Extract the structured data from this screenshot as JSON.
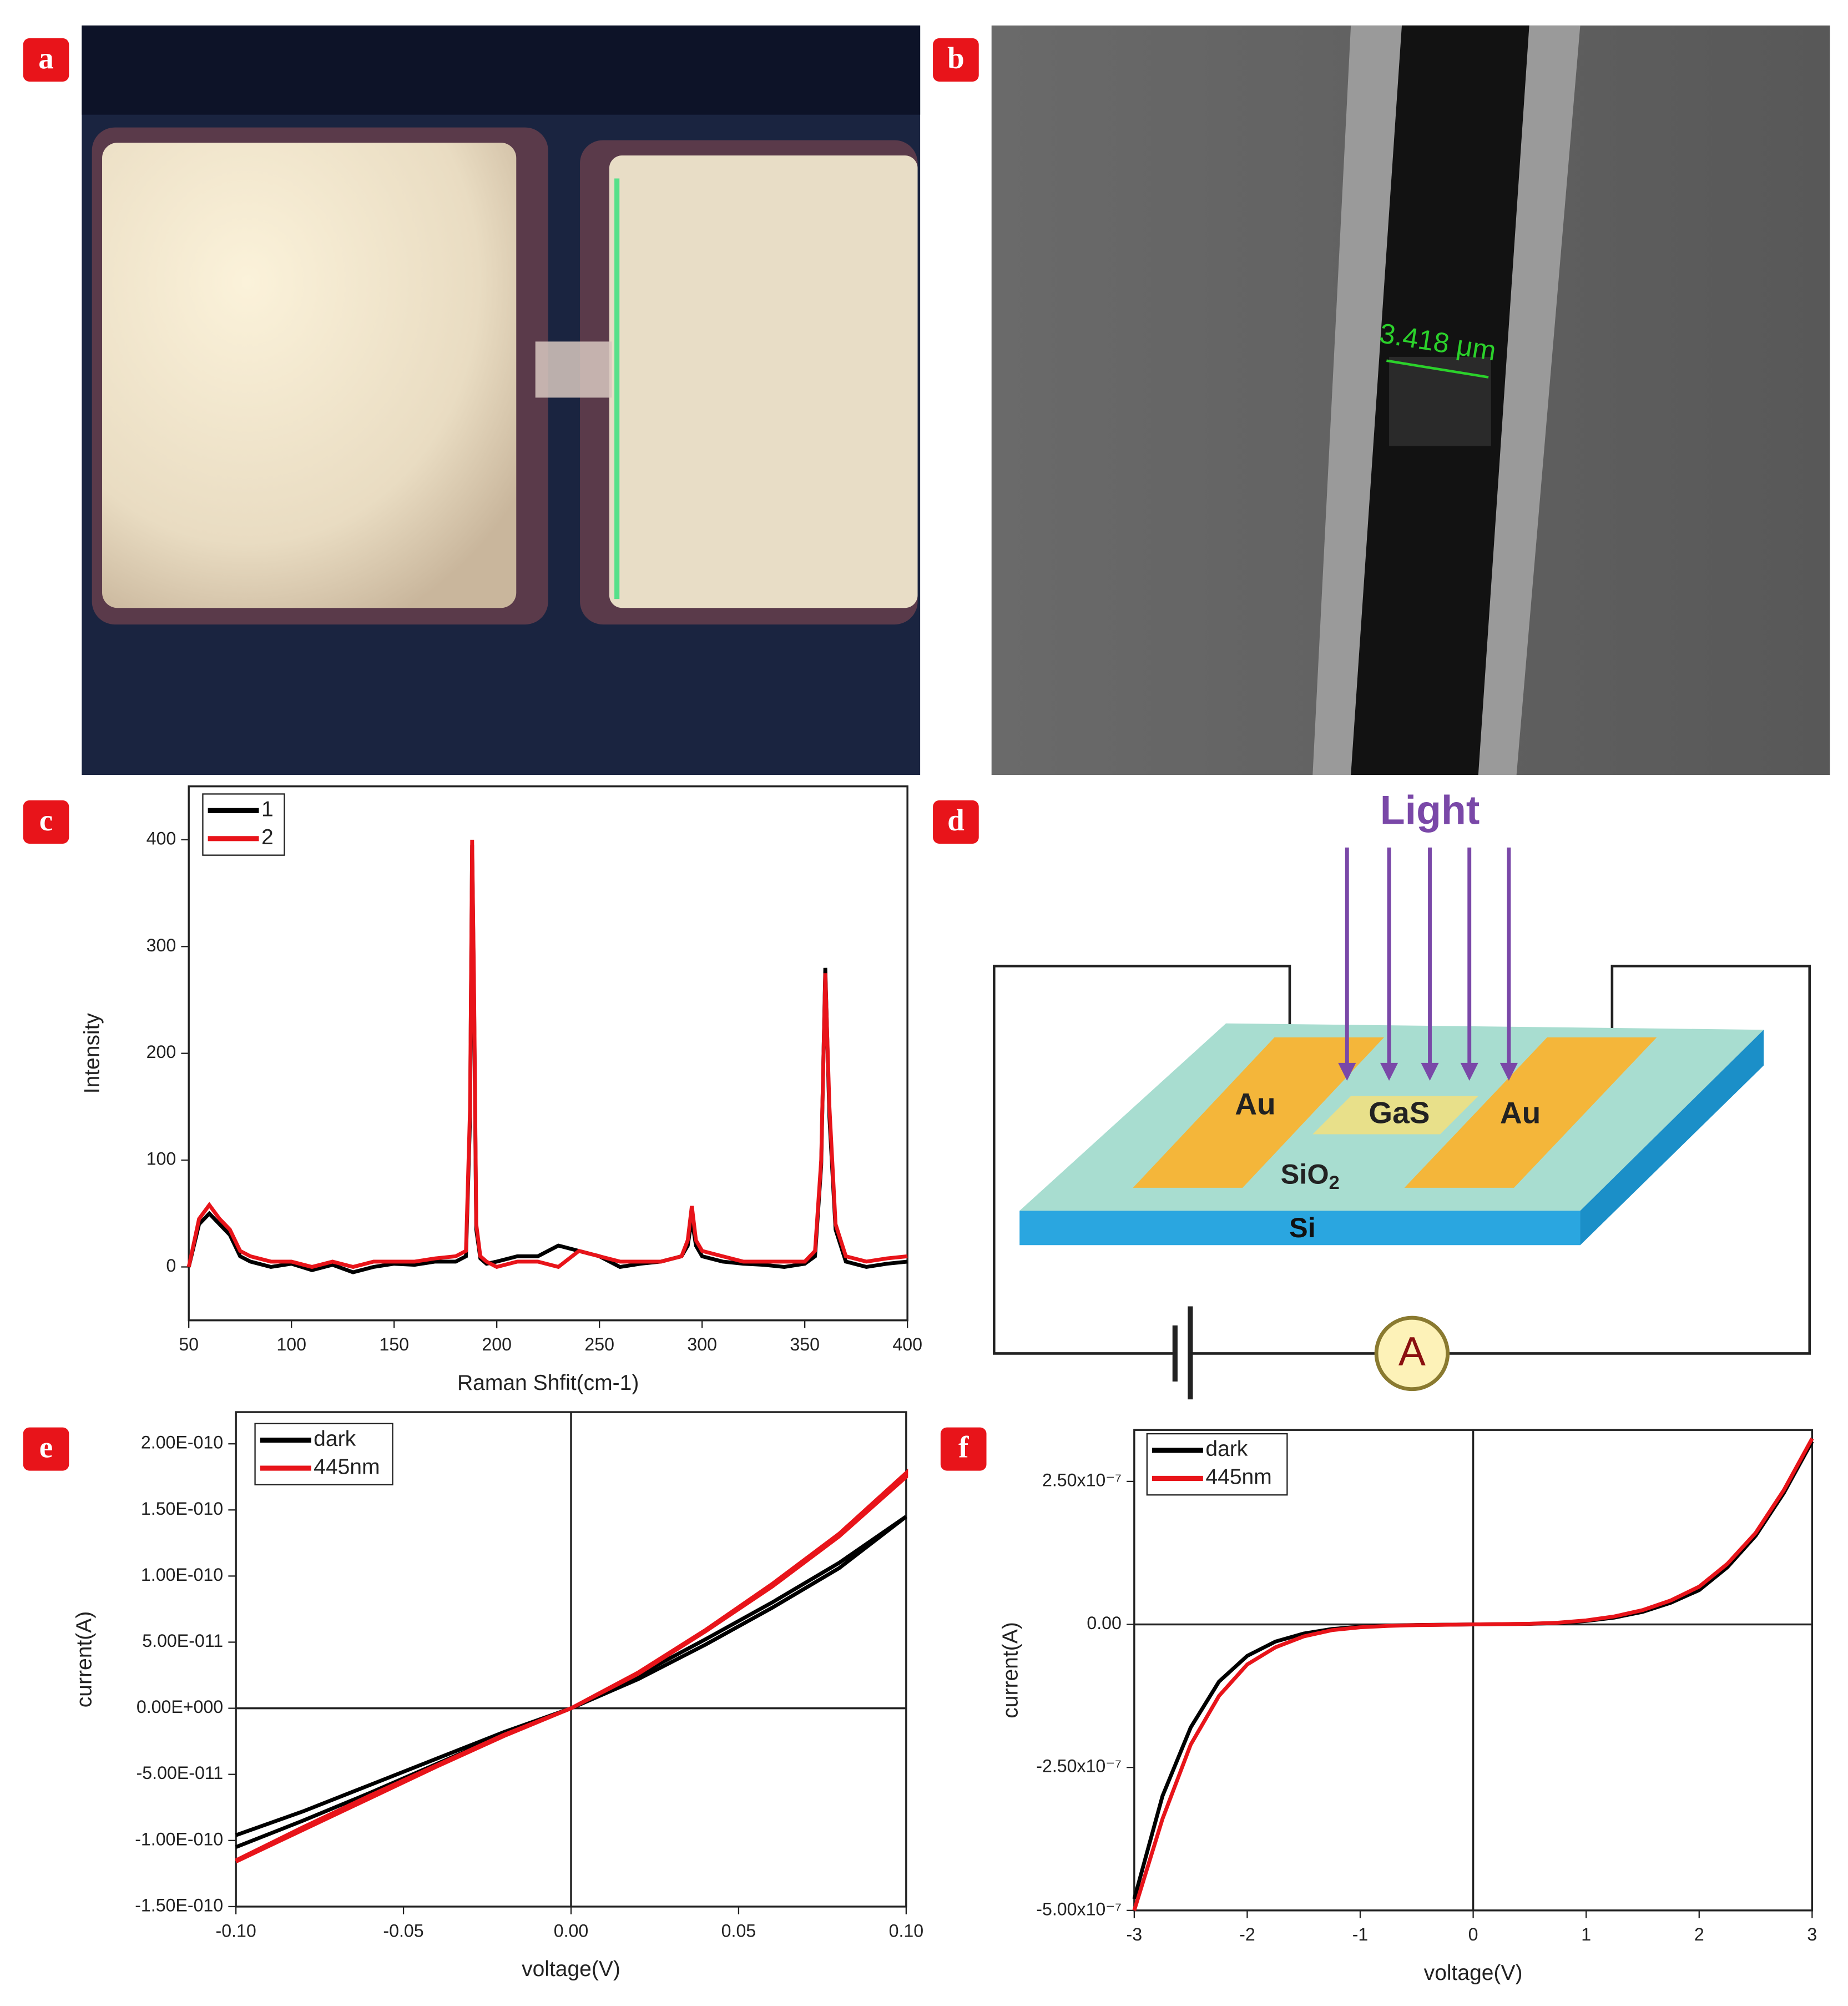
{
  "panel_labels": [
    "a",
    "b",
    "c",
    "d",
    "e",
    "f"
  ],
  "sem_scale": "3.418 μm",
  "diagram": {
    "light": "Light",
    "electrodes": [
      "Au",
      "Au"
    ],
    "channel": "GaS",
    "oxide": "SiO",
    "oxide_subscript": "2",
    "substrate": "Si",
    "meter": "A"
  },
  "chart_data": [
    {
      "type": "line",
      "xlabel": "Raman Shfit(cm-1)",
      "ylabel": "Intensity",
      "x": [
        50,
        55,
        60,
        65,
        70,
        75,
        80,
        90,
        100,
        110,
        120,
        130,
        140,
        150,
        160,
        170,
        180,
        185,
        187,
        188,
        189,
        190,
        192,
        195,
        200,
        210,
        220,
        230,
        240,
        250,
        260,
        270,
        280,
        290,
        293,
        295,
        297,
        300,
        310,
        320,
        330,
        340,
        350,
        355,
        358,
        360,
        362,
        365,
        370,
        380,
        390,
        400
      ],
      "series": [
        {
          "name": "1",
          "color": "#000000",
          "values": [
            0,
            40,
            50,
            40,
            30,
            10,
            5,
            0,
            3,
            -3,
            2,
            -5,
            0,
            3,
            2,
            5,
            5,
            10,
            140,
            395,
            240,
            35,
            8,
            3,
            5,
            10,
            10,
            20,
            15,
            10,
            0,
            3,
            5,
            10,
            20,
            45,
            20,
            10,
            5,
            3,
            2,
            0,
            3,
            10,
            95,
            280,
            140,
            35,
            5,
            0,
            3,
            5
          ]
        },
        {
          "name": "2",
          "color": "#e8141a",
          "values": [
            0,
            45,
            58,
            45,
            35,
            15,
            10,
            5,
            5,
            0,
            5,
            0,
            5,
            5,
            5,
            8,
            10,
            15,
            150,
            400,
            250,
            40,
            10,
            5,
            0,
            5,
            5,
            0,
            15,
            10,
            5,
            5,
            5,
            10,
            25,
            57,
            25,
            15,
            10,
            5,
            5,
            5,
            5,
            15,
            100,
            275,
            150,
            40,
            10,
            5,
            8,
            10
          ]
        }
      ],
      "xlim": [
        50,
        400
      ],
      "xticks": [
        50,
        100,
        150,
        200,
        250,
        300,
        350,
        400
      ],
      "ylim": [
        -50,
        450
      ],
      "yticks": [
        0,
        100,
        200,
        300,
        400
      ],
      "legend": "upper left",
      "zero_lines": false
    },
    {
      "type": "line",
      "xlabel": "voltage(V)",
      "ylabel": "current(A)",
      "x": [
        -0.1,
        -0.08,
        -0.06,
        -0.04,
        -0.02,
        0,
        0.02,
        0.04,
        0.06,
        0.08,
        0.1,
        0.1,
        0.08,
        0.06,
        0.04,
        0.02,
        0,
        -0.02,
        -0.04,
        -0.06,
        -0.08,
        -0.1
      ],
      "series": [
        {
          "name": "dark",
          "color": "#000000",
          "values": [
            -9.6e-11,
            -7.8e-11,
            -5.8e-11,
            -3.8e-11,
            -1.8e-11,
            0,
            2.2e-11,
            4.8e-11,
            7.6e-11,
            1.06e-10,
            1.45e-10,
            1.45e-10,
            1.1e-10,
            8e-11,
            5.2e-11,
            2.5e-11,
            0,
            -2e-11,
            -4.2e-11,
            -6.4e-11,
            -8.5e-11,
            -1.05e-10
          ]
        },
        {
          "name": "445nm",
          "color": "#e8141a",
          "values": [
            -1.15e-10,
            -9e-11,
            -6.6e-11,
            -4.3e-11,
            -2e-11,
            0,
            2.6e-11,
            5.8e-11,
            9.2e-11,
            1.3e-10,
            1.75e-10,
            1.78e-10,
            1.32e-10,
            9.4e-11,
            5.9e-11,
            2.7e-11,
            0,
            -2.1e-11,
            -4.4e-11,
            -6.8e-11,
            -9.2e-11,
            -1.16e-10
          ]
        }
      ],
      "xlim": [
        -0.1,
        0.1
      ],
      "xticks": [
        {
          "value": -0.1,
          "label": "-0.10"
        },
        {
          "value": -0.05,
          "label": "-0.05"
        },
        {
          "value": 0,
          "label": "0.00"
        },
        {
          "value": 0.05,
          "label": "0.05"
        },
        {
          "value": 0.1,
          "label": "0.10"
        }
      ],
      "ylim": [
        -1.5e-10,
        2.24e-10
      ],
      "yticks": [
        {
          "value": -1.5e-10,
          "label": "-1.50E-010"
        },
        {
          "value": -1e-10,
          "label": "-1.00E-010"
        },
        {
          "value": -5e-11,
          "label": "-5.00E-011"
        },
        {
          "value": 0,
          "label": "0.00E+000"
        },
        {
          "value": 5e-11,
          "label": "5.00E-011"
        },
        {
          "value": 1e-10,
          "label": "1.00E-010"
        },
        {
          "value": 1.5e-10,
          "label": "1.50E-010"
        },
        {
          "value": 2e-10,
          "label": "2.00E-010"
        }
      ],
      "legend": "upper left",
      "zero_lines": true
    },
    {
      "type": "line",
      "xlabel": "voltage(V)",
      "ylabel": "current(A)",
      "x": [
        -3,
        -2.75,
        -2.5,
        -2.25,
        -2,
        -1.75,
        -1.5,
        -1.25,
        -1,
        -0.75,
        -0.5,
        -0.25,
        0,
        0.25,
        0.5,
        0.75,
        1,
        1.25,
        1.5,
        1.75,
        2,
        2.25,
        2.5,
        2.75,
        3
      ],
      "series": [
        {
          "name": "dark",
          "color": "#000000",
          "values": [
            -4.8e-07,
            -3e-07,
            -1.8e-07,
            -1e-07,
            -5.5e-08,
            -3e-08,
            -1.6e-08,
            -8e-09,
            -4e-09,
            -2e-09,
            -1e-09,
            -5e-10,
            0,
            5e-10,
            1e-09,
            2.5e-09,
            6e-09,
            1.2e-08,
            2.2e-08,
            3.8e-08,
            6e-08,
            1e-07,
            1.55e-07,
            2.3e-07,
            3.2e-07
          ]
        },
        {
          "name": "445nm",
          "color": "#e8141a",
          "values": [
            -5e-07,
            -3.4e-07,
            -2.1e-07,
            -1.25e-07,
            -7e-08,
            -4e-08,
            -2.1e-08,
            -1e-08,
            -5e-09,
            -2.5e-09,
            -1.2e-09,
            -6e-10,
            0,
            6e-10,
            1.2e-09,
            3e-09,
            7e-09,
            1.4e-08,
            2.5e-08,
            4.2e-08,
            6.6e-08,
            1.06e-07,
            1.6e-07,
            2.35e-07,
            3.25e-07
          ]
        }
      ],
      "xlim": [
        -3,
        3
      ],
      "xticks": [
        -3,
        -2,
        -1,
        0,
        1,
        2,
        3
      ],
      "ylim": [
        -5e-07,
        3.4e-07
      ],
      "yticks": [
        {
          "value": -5e-07,
          "label": "-5.00x10⁻⁷"
        },
        {
          "value": -2.5e-07,
          "label": "-2.50x10⁻⁷"
        },
        {
          "value": 0,
          "label": "0.00"
        },
        {
          "value": 2.5e-07,
          "label": "2.50x10⁻⁷"
        }
      ],
      "legend": "upper left",
      "zero_lines": true
    }
  ]
}
